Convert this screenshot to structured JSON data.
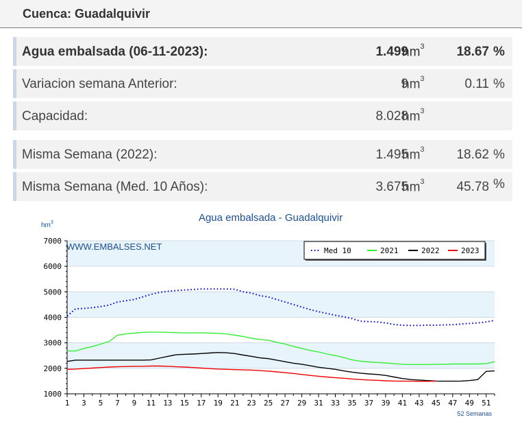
{
  "header": {
    "title": "Cuenca: Guadalquivir"
  },
  "stats": [
    {
      "label": "Agua embalsada (06-11-2023):",
      "value": "1.499",
      "unit": "hm",
      "percent": "18.67",
      "pct_sign": "%",
      "bold": true
    },
    {
      "label": "Variacion semana Anterior:",
      "value": "9",
      "unit": "hm",
      "percent": "0.11",
      "pct_sign": "%"
    },
    {
      "label": "Capacidad:",
      "value": "8.028",
      "unit": "hm",
      "percent": "",
      "pct_sign": ""
    },
    {
      "label": "Misma Semana (2022):",
      "value": "1.495",
      "unit": "hm",
      "percent": "18.62",
      "pct_sign": "%"
    },
    {
      "label": "Misma Semana (Med. 10 Años):",
      "value": "3.675",
      "unit": "hm",
      "percent": "45.78",
      "pct_sign": "%"
    }
  ],
  "unit_exponent": "3",
  "chart_data": {
    "type": "line",
    "title": "Agua embalsada - Guadalquivir",
    "ylabel": "hm",
    "ylabel_exponent": "3",
    "xlabel": "52 Semanas",
    "watermark": "WWW.EMBALSES.NET",
    "ylim": [
      1000,
      7000
    ],
    "yticks": [
      1000,
      2000,
      3000,
      4000,
      5000,
      6000,
      7000
    ],
    "xlim": [
      1,
      52
    ],
    "xticks": [
      1,
      3,
      5,
      7,
      9,
      11,
      13,
      15,
      17,
      19,
      21,
      23,
      25,
      27,
      29,
      31,
      33,
      35,
      37,
      39,
      41,
      43,
      45,
      47,
      49,
      51
    ],
    "grid": true,
    "legend_position": "top-right",
    "colors": {
      "band": "#e8f4fc",
      "plot_bg": "#ffffff",
      "axis": "#000000"
    },
    "series": [
      {
        "name": "Med 10",
        "color": "#0000dd",
        "style": "dotted",
        "x": [
          1,
          2,
          3,
          4,
          5,
          6,
          7,
          8,
          9,
          10,
          11,
          12,
          13,
          14,
          15,
          16,
          17,
          18,
          19,
          20,
          21,
          22,
          23,
          24,
          25,
          26,
          27,
          28,
          29,
          30,
          31,
          32,
          33,
          34,
          35,
          36,
          37,
          38,
          39,
          40,
          41,
          42,
          43,
          44,
          45,
          46,
          47,
          48,
          49,
          50,
          51,
          52
        ],
        "values": [
          4050,
          4330,
          4350,
          4380,
          4420,
          4480,
          4600,
          4650,
          4700,
          4800,
          4900,
          4980,
          5020,
          5050,
          5070,
          5090,
          5110,
          5110,
          5110,
          5110,
          5100,
          5000,
          4950,
          4850,
          4800,
          4700,
          4600,
          4500,
          4400,
          4300,
          4220,
          4150,
          4080,
          4020,
          3950,
          3850,
          3830,
          3820,
          3780,
          3720,
          3690,
          3680,
          3680,
          3690,
          3690,
          3700,
          3710,
          3740,
          3760,
          3780,
          3820,
          3880
        ]
      },
      {
        "name": "2021",
        "color": "#33ee33",
        "style": "solid",
        "x": [
          1,
          2,
          3,
          4,
          5,
          6,
          7,
          8,
          9,
          10,
          11,
          12,
          13,
          14,
          15,
          16,
          17,
          18,
          19,
          20,
          21,
          22,
          23,
          24,
          25,
          26,
          27,
          28,
          29,
          30,
          31,
          32,
          33,
          34,
          35,
          36,
          37,
          38,
          39,
          40,
          41,
          42,
          43,
          44,
          45,
          46,
          47,
          48,
          49,
          50,
          51,
          52
        ],
        "values": [
          2680,
          2680,
          2780,
          2850,
          2950,
          3050,
          3300,
          3350,
          3380,
          3410,
          3420,
          3420,
          3410,
          3400,
          3390,
          3390,
          3390,
          3380,
          3370,
          3350,
          3300,
          3250,
          3180,
          3130,
          3100,
          3020,
          2950,
          2860,
          2780,
          2700,
          2640,
          2560,
          2500,
          2420,
          2330,
          2280,
          2250,
          2230,
          2210,
          2180,
          2160,
          2150,
          2150,
          2150,
          2160,
          2160,
          2170,
          2170,
          2170,
          2170,
          2180,
          2260
        ]
      },
      {
        "name": "2022",
        "color": "#000000",
        "style": "solid",
        "x": [
          1,
          2,
          3,
          4,
          5,
          6,
          7,
          8,
          9,
          10,
          11,
          12,
          13,
          14,
          15,
          16,
          17,
          18,
          19,
          20,
          21,
          22,
          23,
          24,
          25,
          26,
          27,
          28,
          29,
          30,
          31,
          32,
          33,
          34,
          35,
          36,
          37,
          38,
          39,
          40,
          41,
          42,
          43,
          44,
          45,
          46,
          47,
          48,
          49,
          50,
          51,
          52
        ],
        "values": [
          2270,
          2320,
          2320,
          2320,
          2320,
          2320,
          2320,
          2320,
          2320,
          2320,
          2330,
          2400,
          2470,
          2530,
          2550,
          2560,
          2580,
          2600,
          2620,
          2610,
          2580,
          2520,
          2470,
          2410,
          2380,
          2320,
          2260,
          2200,
          2160,
          2100,
          2040,
          2000,
          1960,
          1900,
          1850,
          1810,
          1780,
          1760,
          1720,
          1660,
          1600,
          1560,
          1540,
          1520,
          1500,
          1495,
          1495,
          1500,
          1520,
          1560,
          1880,
          1900
        ]
      },
      {
        "name": "2023",
        "color": "#ee0000",
        "style": "solid",
        "x": [
          1,
          2,
          3,
          4,
          5,
          6,
          7,
          8,
          9,
          10,
          11,
          12,
          13,
          14,
          15,
          16,
          17,
          18,
          19,
          20,
          21,
          22,
          23,
          24,
          25,
          26,
          27,
          28,
          29,
          30,
          31,
          32,
          33,
          34,
          35,
          36,
          37,
          38,
          39,
          40,
          41,
          42,
          43,
          44,
          45
        ],
        "values": [
          1960,
          1970,
          1990,
          2010,
          2030,
          2050,
          2060,
          2070,
          2080,
          2080,
          2090,
          2090,
          2080,
          2060,
          2050,
          2030,
          2010,
          1990,
          1970,
          1960,
          1950,
          1940,
          1930,
          1910,
          1890,
          1860,
          1830,
          1800,
          1760,
          1720,
          1690,
          1660,
          1630,
          1610,
          1580,
          1560,
          1540,
          1530,
          1510,
          1500,
          1495,
          1495,
          1490,
          1490,
          1499
        ]
      }
    ]
  }
}
